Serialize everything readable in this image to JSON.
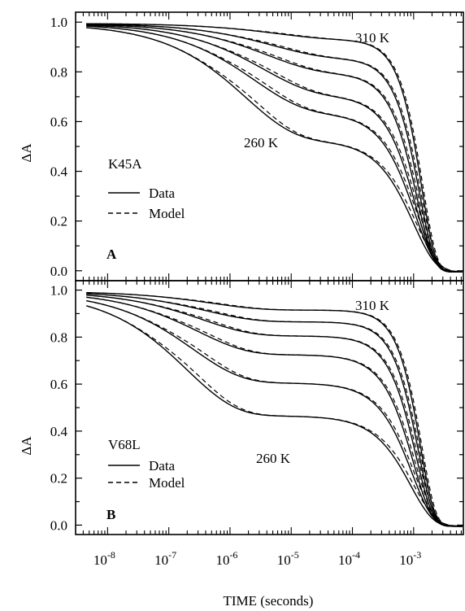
{
  "chart_data": [
    {
      "type": "line",
      "panel_label": "A",
      "sample_label": "K45A",
      "ylabel": "ΔA",
      "xscale": "log",
      "xlim": [
        3e-09,
        0.0065
      ],
      "ylim": [
        -0.04,
        1.04
      ],
      "yticks": [
        "0.0",
        "0.2",
        "0.4",
        "0.6",
        "0.8",
        "1.0"
      ],
      "grid": false,
      "legend": {
        "placement": "left-middle",
        "entries": [
          {
            "label": "Data",
            "style": "solid"
          },
          {
            "label": "Model",
            "style": "dashed"
          }
        ]
      },
      "annotations": [
        "310 K",
        "260 K"
      ],
      "series_params": [
        {
          "a1": 0.065,
          "t1": 6e-06,
          "t2": 0.00135,
          "k": 1.9
        },
        {
          "a1": 0.14,
          "t1": 5e-06,
          "t2": 0.00125,
          "k": 1.75
        },
        {
          "a1": 0.2,
          "t1": 4e-06,
          "t2": 0.00115,
          "k": 1.6
        },
        {
          "a1": 0.29,
          "t1": 3.5e-06,
          "t2": 0.0011,
          "k": 1.45
        },
        {
          "a1": 0.36,
          "t1": 2.5e-06,
          "t2": 0.00105,
          "k": 1.3
        },
        {
          "a1": 0.47,
          "t1": 1.8e-06,
          "t2": 0.001,
          "k": 1.2
        }
      ]
    },
    {
      "type": "line",
      "panel_label": "B",
      "sample_label": "V68L",
      "ylabel": "ΔA",
      "xscale": "log",
      "xlim": [
        3e-09,
        0.0065
      ],
      "ylim": [
        -0.04,
        1.04
      ],
      "yticks": [
        "0.0",
        "0.2",
        "0.4",
        "0.6",
        "0.8",
        "1.0"
      ],
      "grid": false,
      "legend": {
        "placement": "left-middle",
        "entries": [
          {
            "label": "Data",
            "style": "solid"
          },
          {
            "label": "Model",
            "style": "dashed"
          }
        ]
      },
      "annotations": [
        "310 K",
        "260 K"
      ],
      "series_params": [
        {
          "a1": 0.08,
          "t1": 5e-07,
          "t2": 0.0013,
          "k": 1.9
        },
        {
          "a1": 0.13,
          "t1": 4e-07,
          "t2": 0.0012,
          "k": 1.75
        },
        {
          "a1": 0.19,
          "t1": 3.5e-07,
          "t2": 0.0011,
          "k": 1.6
        },
        {
          "a1": 0.27,
          "t1": 3e-07,
          "t2": 0.001,
          "k": 1.45
        },
        {
          "a1": 0.39,
          "t1": 2.5e-07,
          "t2": 0.00095,
          "k": 1.3
        },
        {
          "a1": 0.53,
          "t1": 2e-07,
          "t2": 0.0009,
          "k": 1.2
        }
      ]
    }
  ],
  "x_axis": {
    "xlabel": "TIME (seconds)",
    "ticks": [
      {
        "base": "10",
        "exp": "-8"
      },
      {
        "base": "10",
        "exp": "-7"
      },
      {
        "base": "10",
        "exp": "-6"
      },
      {
        "base": "10",
        "exp": "-5"
      },
      {
        "base": "10",
        "exp": "-4"
      },
      {
        "base": "10",
        "exp": "-3"
      }
    ]
  }
}
